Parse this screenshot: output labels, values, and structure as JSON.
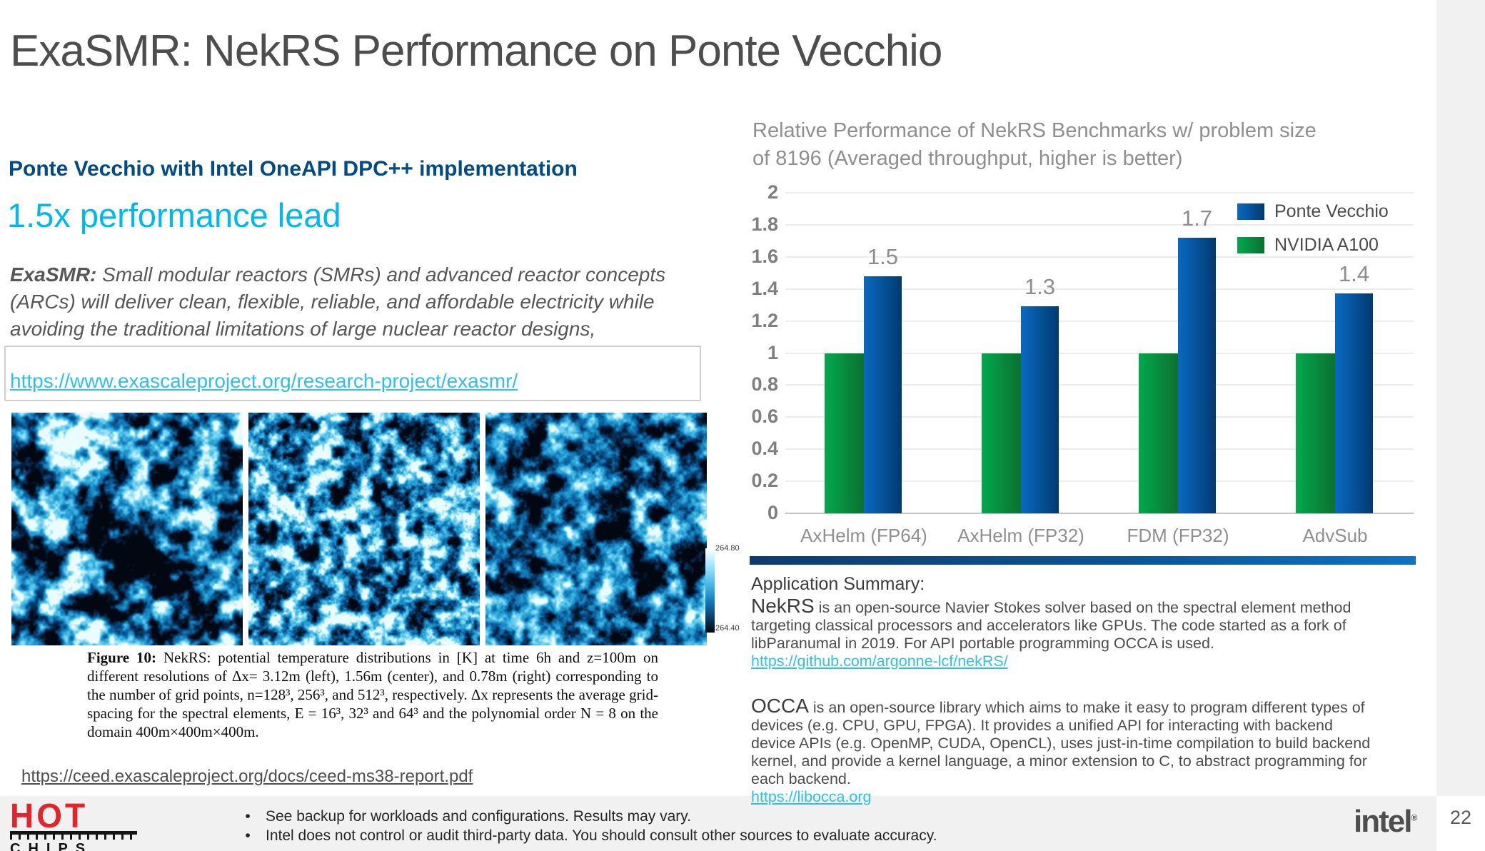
{
  "slide": {
    "title": "ExaSMR: NekRS Performance on Ponte Vecchio",
    "page_number": "22"
  },
  "left": {
    "subtitle": "Ponte Vecchio with Intel OneAPI DPC++ implementation",
    "headline": "1.5x performance lead",
    "exasmr_label": "ExaSMR:",
    "exasmr_text": " Small modular reactors (SMRs) and advanced reactor concepts (ARCs) will deliver clean, flexible, reliable, and affordable electricity while avoiding the traditional limitations of large nuclear reactor designs,",
    "exasmr_link": "https://www.exascaleproject.org/research-project/exasmr/",
    "caption_label": "Figure 10:",
    "caption_text": " NekRS: potential temperature distributions in [K] at time 6h and z=100m on different resolutions of Δx= 3.12m (left), 1.56m (center), and 0.78m (right) corresponding to the number of grid points, n=128³, 256³, and 512³, respectively. Δx represents the average grid-spacing for the spectral elements, E = 16³, 32³ and 64³ and the polynomial order N = 8 on the domain 400m×400m×400m.",
    "report_link": "https://ceed.exascaleproject.org/docs/ceed-ms38-report.pdf",
    "colorbar": {
      "top_label": "264.80",
      "bottom_label": "264.40"
    }
  },
  "chart_data": {
    "type": "bar",
    "title": "Relative Performance of NekRS Benchmarks w/ problem size of 8196 (Averaged throughput, higher is better)",
    "categories": [
      "AxHelm (FP64)",
      "AxHelm (FP32)",
      "FDM (FP32)",
      "AdvSub"
    ],
    "series": [
      {
        "name": "NVIDIA A100",
        "values": [
          1.0,
          1.0,
          1.0,
          1.0
        ],
        "gradient": [
          "#02a94c",
          "#0c7031"
        ]
      },
      {
        "name": "Ponte Vecchio",
        "values": [
          1.48,
          1.29,
          1.72,
          1.37
        ],
        "gradient": [
          "#0a69c2",
          "#003a6f"
        ]
      }
    ],
    "bar_labels": [
      "1.5",
      "1.3",
      "1.7",
      "1.4"
    ],
    "legend_order": [
      "Ponte Vecchio",
      "NVIDIA A100"
    ],
    "legend_position": "top-right",
    "ylim": [
      0,
      2
    ],
    "ytick_step": 0.2,
    "grid": true,
    "xlabel": "",
    "ylabel": ""
  },
  "summary": {
    "heading": "Application Summary:",
    "nekrs_label": "NekRS",
    "nekrs_text": " is an open-source Navier Stokes solver based on the spectral element method targeting classical processors and accelerators like GPUs. The code started as a fork of libParanumal in 2019. For API portable programming OCCA is used.",
    "nekrs_link": "https://github.com/argonne-lcf/nekRS/",
    "occa_label": "OCCA",
    "occa_text": " is an open-source library which aims to make it easy to program different types of devices (e.g. CPU, GPU, FPGA). It provides a unified API for interacting with backend device APIs (e.g. OpenMP, CUDA, OpenCL),  uses just-in-time compilation to build backend kernel, and provide a kernel language, a minor extension to C, to abstract programming for each backend.",
    "occa_link": "https://libocca.org"
  },
  "footer": {
    "hot_label": "HOT",
    "chips_label": "CHIPS",
    "bullet1": "See backup for workloads and configurations. Results may vary.",
    "bullet2": "Intel does not control or audit third-party data.  You should consult other sources to evaluate accuracy.",
    "intel_label": "intel",
    "intel_mark": "®"
  },
  "colors": {
    "accent_navy": "#004a86",
    "accent_cyan": "#00b8f0",
    "link_cyan": "#2fc0ea",
    "bar_green": "#02a94c",
    "bar_blue": "#0a69c2",
    "footer_bg": "#f1f1f1"
  }
}
